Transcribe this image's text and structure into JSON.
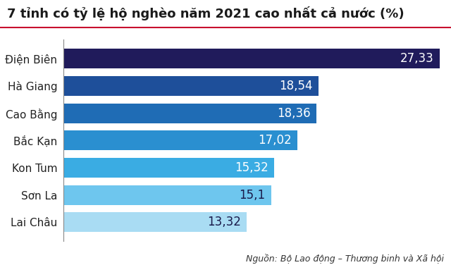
{
  "chart_data": {
    "type": "bar",
    "title": "7 tỉnh có tỷ lệ hộ nghèo năm 2021 cao nhất cả nước (%)",
    "source": "Nguồn: Bộ Lao động – Thương binh và Xã hội",
    "orientation": "horizontal",
    "categories": [
      "Điện Biên",
      "Hà Giang",
      "Cao Bằng",
      "Bắc Kạn",
      "Kon Tum",
      "Sơn La",
      "Lai Châu"
    ],
    "values": [
      27.33,
      18.54,
      18.36,
      17.02,
      15.32,
      15.1,
      13.32
    ],
    "value_labels": [
      "27,33",
      "18,54",
      "18,36",
      "17,02",
      "15,32",
      "15,1",
      "13,32"
    ],
    "colors": [
      "#201b5b",
      "#1e4f9a",
      "#1f6cb5",
      "#2a8fd0",
      "#3aace3",
      "#6ec6ee",
      "#a9dcf3"
    ],
    "data_labels": true,
    "tick_labels": "y",
    "grid": false
  }
}
